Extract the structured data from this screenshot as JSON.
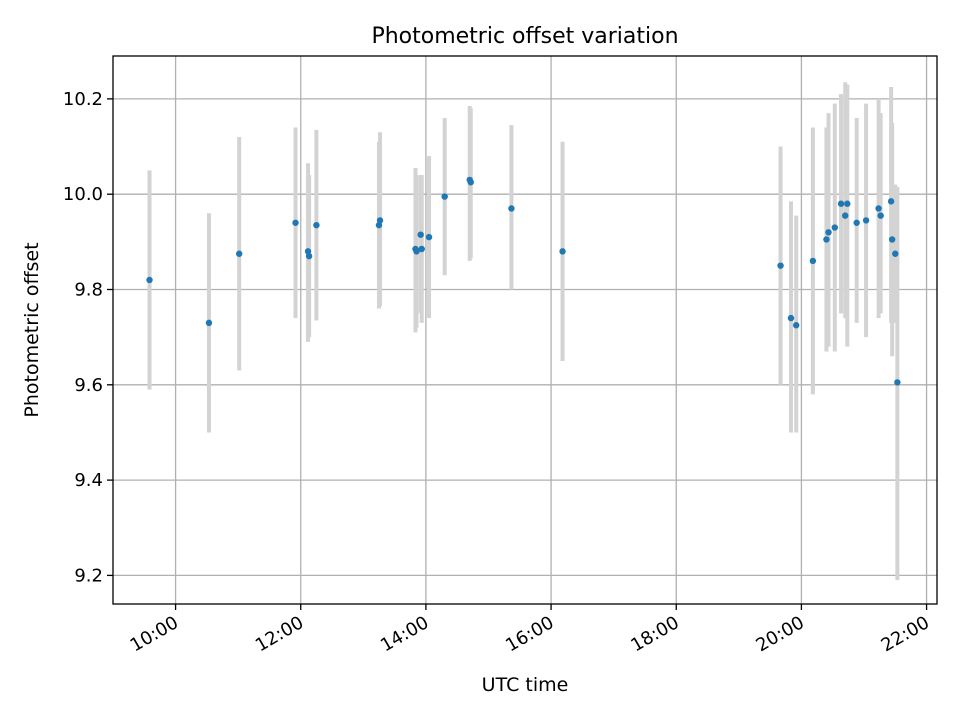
{
  "chart_data": {
    "type": "scatter",
    "title": "Photometric offset variation",
    "xlabel": "UTC time",
    "ylabel": "Photometric offset",
    "x_tick_labels": [
      "10:00",
      "12:00",
      "14:00",
      "16:00",
      "18:00",
      "20:00",
      "22:00"
    ],
    "y_tick_labels": [
      "9.2",
      "9.4",
      "9.6",
      "9.8",
      "10.0",
      "10.2"
    ],
    "xlim": [
      "09:00",
      "22:10"
    ],
    "ylim": [
      9.14,
      10.29
    ],
    "grid": true,
    "legend": "none",
    "point_color": "#1f77b4",
    "errorbar_color": "#d3d3d3",
    "series": [
      {
        "points": [
          {
            "x": "09:35",
            "y": 9.82,
            "lo": 9.59,
            "hi": 10.05
          },
          {
            "x": "10:32",
            "y": 9.73,
            "lo": 9.5,
            "hi": 9.96
          },
          {
            "x": "11:01",
            "y": 9.875,
            "lo": 9.63,
            "hi": 10.12
          },
          {
            "x": "11:55",
            "y": 9.94,
            "lo": 9.74,
            "hi": 10.14
          },
          {
            "x": "12:07",
            "y": 9.88,
            "lo": 9.69,
            "hi": 10.065
          },
          {
            "x": "12:08",
            "y": 9.87,
            "lo": 9.7,
            "hi": 10.04
          },
          {
            "x": "12:15",
            "y": 9.935,
            "lo": 9.735,
            "hi": 10.135
          },
          {
            "x": "13:15",
            "y": 9.935,
            "lo": 9.76,
            "hi": 10.11
          },
          {
            "x": "13:16",
            "y": 9.945,
            "lo": 9.765,
            "hi": 10.13
          },
          {
            "x": "13:50",
            "y": 9.885,
            "lo": 9.71,
            "hi": 10.055
          },
          {
            "x": "13:51",
            "y": 9.88,
            "lo": 9.72,
            "hi": 10.04
          },
          {
            "x": "13:55",
            "y": 9.915,
            "lo": 9.75,
            "hi": 10.04
          },
          {
            "x": "13:56",
            "y": 9.885,
            "lo": 9.73,
            "hi": 10.04
          },
          {
            "x": "14:03",
            "y": 9.91,
            "lo": 9.74,
            "hi": 10.08
          },
          {
            "x": "14:18",
            "y": 9.995,
            "lo": 9.83,
            "hi": 10.16
          },
          {
            "x": "14:42",
            "y": 10.03,
            "lo": 9.86,
            "hi": 10.185
          },
          {
            "x": "14:43",
            "y": 10.025,
            "lo": 9.865,
            "hi": 10.18
          },
          {
            "x": "15:22",
            "y": 9.97,
            "lo": 9.8,
            "hi": 10.145
          },
          {
            "x": "16:11",
            "y": 9.88,
            "lo": 9.65,
            "hi": 10.11
          },
          {
            "x": "19:40",
            "y": 9.85,
            "lo": 9.6,
            "hi": 10.1
          },
          {
            "x": "19:50",
            "y": 9.74,
            "lo": 9.5,
            "hi": 9.985
          },
          {
            "x": "19:55",
            "y": 9.725,
            "lo": 9.5,
            "hi": 9.955
          },
          {
            "x": "20:11",
            "y": 9.86,
            "lo": 9.58,
            "hi": 10.14
          },
          {
            "x": "20:24",
            "y": 9.905,
            "lo": 9.67,
            "hi": 10.14
          },
          {
            "x": "20:26",
            "y": 9.92,
            "lo": 9.68,
            "hi": 10.17
          },
          {
            "x": "20:32",
            "y": 9.93,
            "lo": 9.67,
            "hi": 10.19
          },
          {
            "x": "20:38",
            "y": 9.98,
            "lo": 9.75,
            "hi": 10.21
          },
          {
            "x": "20:42",
            "y": 9.955,
            "lo": 9.74,
            "hi": 10.235
          },
          {
            "x": "20:44",
            "y": 9.98,
            "lo": 9.68,
            "hi": 10.23
          },
          {
            "x": "20:53",
            "y": 9.94,
            "lo": 9.73,
            "hi": 10.16
          },
          {
            "x": "21:02",
            "y": 9.945,
            "lo": 9.7,
            "hi": 10.19
          },
          {
            "x": "21:14",
            "y": 9.97,
            "lo": 9.74,
            "hi": 10.2
          },
          {
            "x": "21:16",
            "y": 9.955,
            "lo": 9.75,
            "hi": 10.17
          },
          {
            "x": "21:26",
            "y": 9.985,
            "lo": 9.73,
            "hi": 10.225
          },
          {
            "x": "21:27",
            "y": 9.905,
            "lo": 9.66,
            "hi": 10.15
          },
          {
            "x": "21:30",
            "y": 9.875,
            "lo": 9.73,
            "hi": 10.02
          },
          {
            "x": "21:32",
            "y": 9.605,
            "lo": 9.19,
            "hi": 10.015
          }
        ]
      }
    ]
  }
}
